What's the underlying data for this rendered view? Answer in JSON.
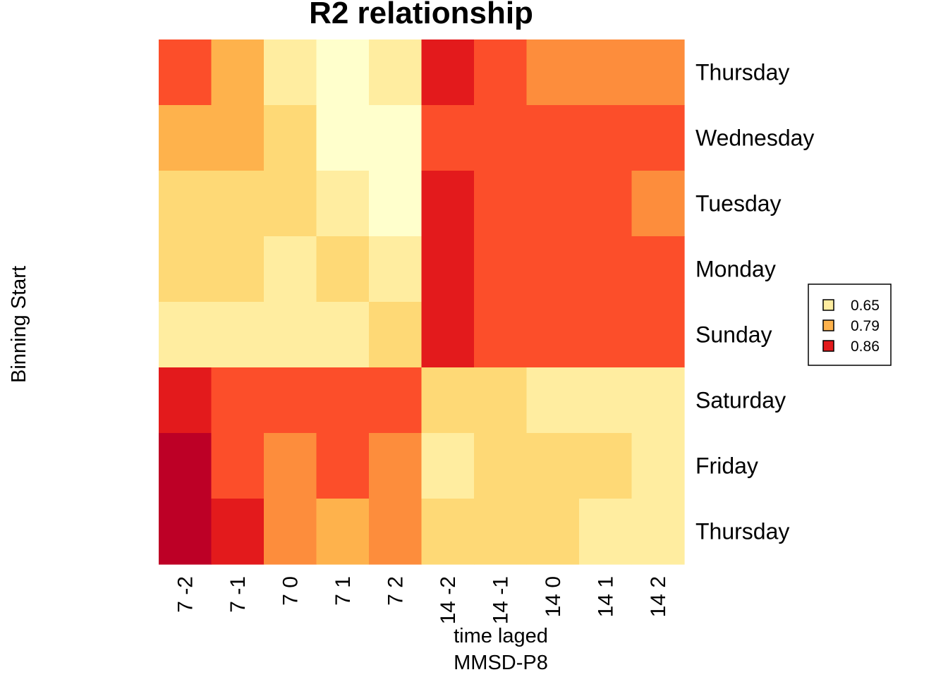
{
  "chart_data": {
    "type": "heatmap",
    "title": "R2 relationship",
    "xlabel": "time laged",
    "xlabel_line2": "MMSD-P8",
    "ylabel": "Binning Start",
    "x_categories": [
      "7 -2",
      "7 -1",
      "7 0",
      "7 1",
      "7 2",
      "14 -2",
      "14 -1",
      "14 0",
      "14 1",
      "14 2"
    ],
    "y_categories": [
      "Thursday",
      "Wednesday",
      "Tuesday",
      "Monday",
      "Sunday",
      "Saturday",
      "Friday",
      "Thursday"
    ],
    "color_scale": [
      "#FFFFCC",
      "#FFEDA0",
      "#FED976",
      "#FEB24C",
      "#FD8D3C",
      "#FC4E2A",
      "#E31A1C",
      "#BD0026"
    ],
    "cells": [
      [
        5,
        3,
        1,
        0,
        1,
        6,
        5,
        4,
        4,
        4
      ],
      [
        3,
        3,
        2,
        0,
        0,
        5,
        5,
        5,
        5,
        5
      ],
      [
        2,
        2,
        2,
        1,
        0,
        6,
        5,
        5,
        5,
        4
      ],
      [
        2,
        2,
        1,
        2,
        1,
        6,
        5,
        5,
        5,
        5
      ],
      [
        1,
        1,
        1,
        1,
        2,
        6,
        5,
        5,
        5,
        5
      ],
      [
        6,
        5,
        5,
        5,
        5,
        2,
        2,
        1,
        1,
        1
      ],
      [
        7,
        5,
        4,
        5,
        4,
        1,
        2,
        2,
        2,
        1
      ],
      [
        7,
        6,
        4,
        3,
        4,
        2,
        2,
        2,
        1,
        1
      ]
    ],
    "legend": {
      "position": "right",
      "entries": [
        {
          "label": "0.65",
          "color": "#FFEDA0"
        },
        {
          "label": "0.79",
          "color": "#FEB24C"
        },
        {
          "label": "0.86",
          "color": "#E31A1C"
        }
      ]
    }
  }
}
